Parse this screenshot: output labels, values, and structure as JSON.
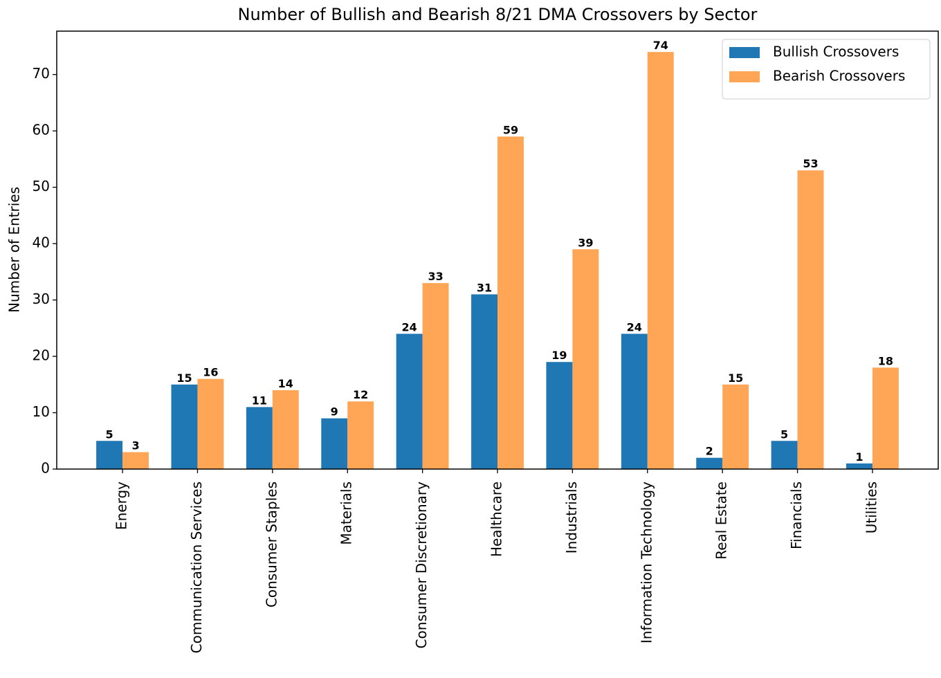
{
  "chart_data": {
    "type": "grouped_bar",
    "title": "Number of Bullish and Bearish 8/21 DMA Crossovers by Sector",
    "ylabel": "Number of Entries",
    "categories": [
      "Energy",
      "Communication Services",
      "Consumer Staples",
      "Materials",
      "Consumer Discretionary",
      "Healthcare",
      "Industrials",
      "Information Technology",
      "Real Estate",
      "Financials",
      "Utilities"
    ],
    "series": [
      {
        "name": "Bullish Crossovers",
        "color": "#1f77b4",
        "values": [
          5,
          15,
          11,
          9,
          24,
          31,
          19,
          24,
          2,
          5,
          1
        ]
      },
      {
        "name": "Bearish Crossovers",
        "color": "#ffa556",
        "values": [
          3,
          16,
          14,
          12,
          33,
          59,
          39,
          74,
          15,
          53,
          18
        ]
      }
    ],
    "ylim": [
      0,
      77.7
    ],
    "yticks": [
      0,
      10,
      20,
      30,
      40,
      50,
      60,
      70
    ],
    "legend": "upper right"
  }
}
